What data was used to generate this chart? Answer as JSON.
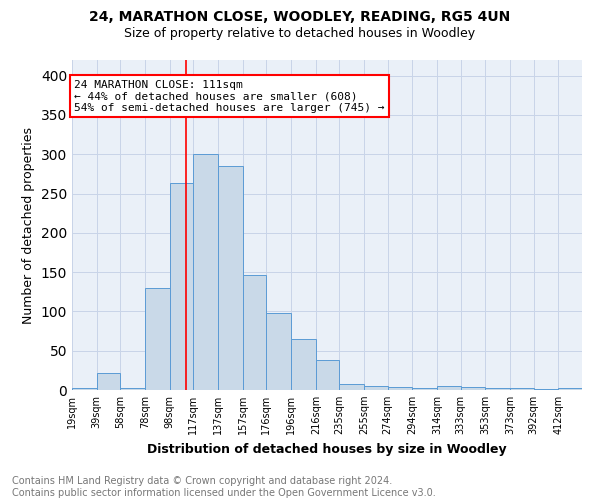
{
  "title1": "24, MARATHON CLOSE, WOODLEY, READING, RG5 4UN",
  "title2": "Size of property relative to detached houses in Woodley",
  "xlabel": "Distribution of detached houses by size in Woodley",
  "ylabel": "Number of detached properties",
  "bin_labels": [
    "19sqm",
    "39sqm",
    "58sqm",
    "78sqm",
    "98sqm",
    "117sqm",
    "137sqm",
    "157sqm",
    "176sqm",
    "196sqm",
    "216sqm",
    "235sqm",
    "255sqm",
    "274sqm",
    "294sqm",
    "314sqm",
    "333sqm",
    "353sqm",
    "373sqm",
    "392sqm",
    "412sqm"
  ],
  "bin_edges": [
    19,
    39,
    58,
    78,
    98,
    117,
    137,
    157,
    176,
    196,
    216,
    235,
    255,
    274,
    294,
    314,
    333,
    353,
    373,
    392,
    412,
    431
  ],
  "bar_values": [
    3,
    22,
    3,
    130,
    263,
    300,
    285,
    146,
    98,
    65,
    38,
    8,
    5,
    4,
    2,
    5,
    4,
    3,
    2,
    1,
    2
  ],
  "bar_color": "#c9d9e8",
  "bar_edge_color": "#5b9bd5",
  "property_value": 111,
  "vline_color": "red",
  "annotation_line1": "24 MARATHON CLOSE: 111sqm",
  "annotation_line2": "← 44% of detached houses are smaller (608)",
  "annotation_line3": "54% of semi-detached houses are larger (745) →",
  "annotation_box_color": "white",
  "annotation_box_edge": "red",
  "ylim": [
    0,
    420
  ],
  "bg_color": "#eaf0f8",
  "grid_color": "#c8d4e8",
  "footnote": "Contains HM Land Registry data © Crown copyright and database right 2024.\nContains public sector information licensed under the Open Government Licence v3.0.",
  "title1_fontsize": 10,
  "title2_fontsize": 9,
  "xlabel_fontsize": 9,
  "ylabel_fontsize": 9,
  "footnote_fontsize": 7,
  "tick_fontsize": 7,
  "annotation_fontsize": 8
}
